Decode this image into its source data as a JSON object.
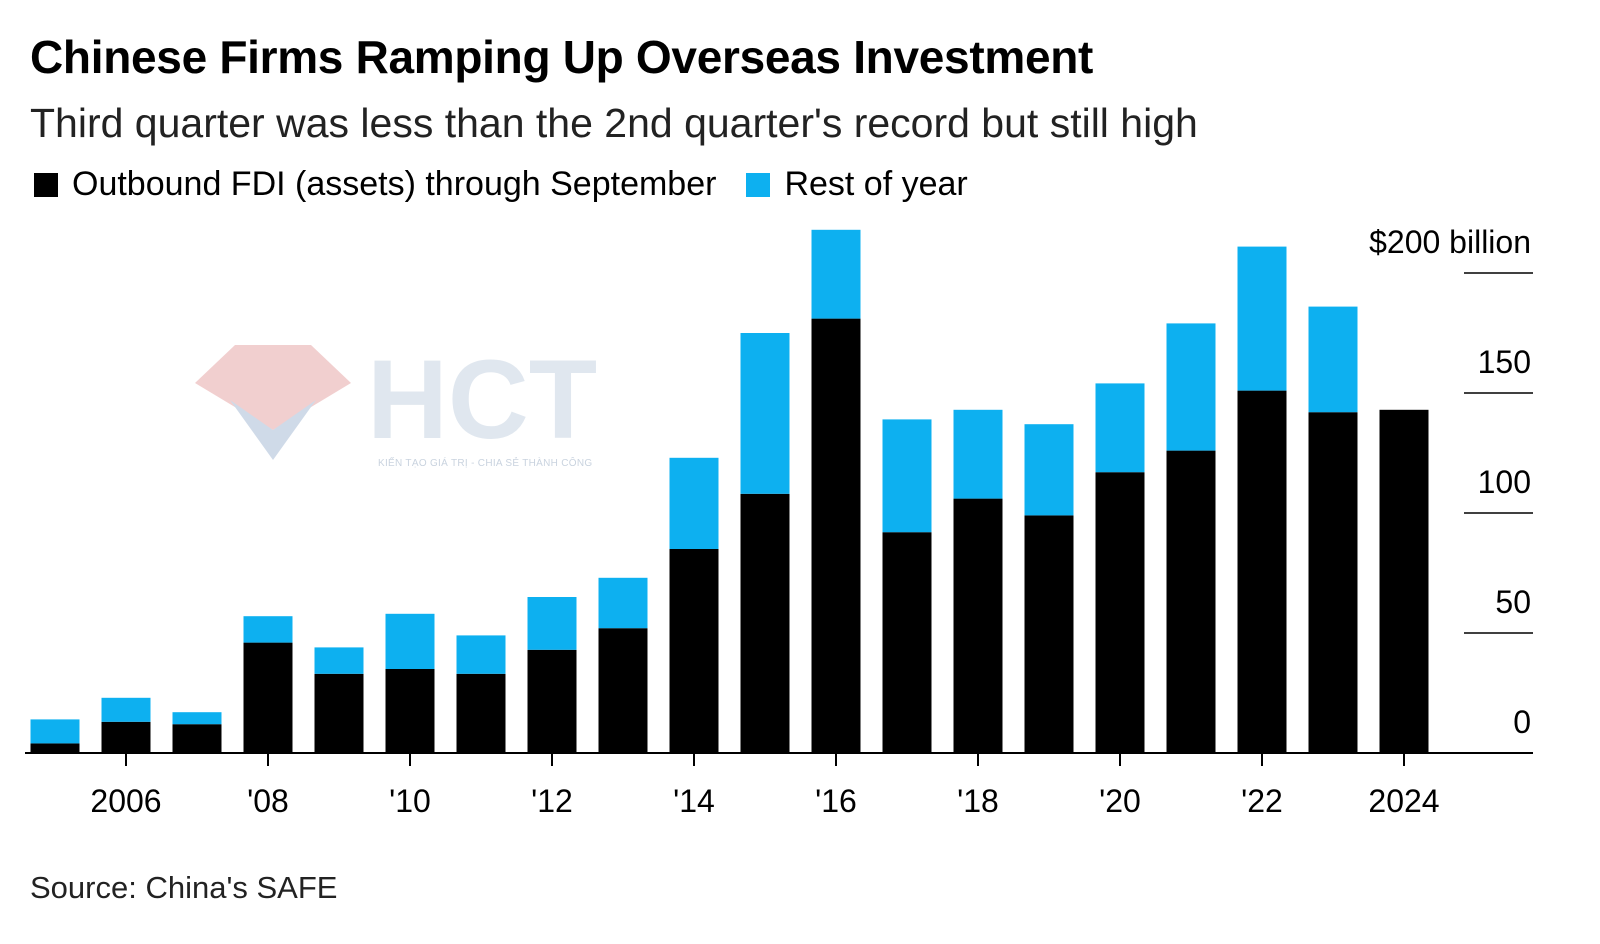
{
  "chart_data": {
    "type": "bar",
    "stacked": true,
    "title": "Chinese Firms Ramping Up Overseas Investment",
    "subtitle": "Third quarter was less than the 2nd quarter's record but still high",
    "source": "Source: China's SAFE",
    "xlabel": "",
    "ylabel": "",
    "ylim": [
      0,
      200
    ],
    "y_ticks": [
      {
        "value": 0,
        "label": "0"
      },
      {
        "value": 50,
        "label": "50"
      },
      {
        "value": 100,
        "label": "100"
      },
      {
        "value": 150,
        "label": "150"
      },
      {
        "value": 200,
        "label": "$200 billion"
      }
    ],
    "x_ticks": [
      {
        "year": 2006,
        "label": "2006"
      },
      {
        "year": 2008,
        "label": "'08"
      },
      {
        "year": 2010,
        "label": "'10"
      },
      {
        "year": 2012,
        "label": "'12"
      },
      {
        "year": 2014,
        "label": "'14"
      },
      {
        "year": 2016,
        "label": "'16"
      },
      {
        "year": 2018,
        "label": "'18"
      },
      {
        "year": 2020,
        "label": "'20"
      },
      {
        "year": 2022,
        "label": "'22"
      },
      {
        "year": 2024,
        "label": "2024"
      }
    ],
    "legend_position": "top-left",
    "categories": [
      2005,
      2006,
      2007,
      2008,
      2009,
      2010,
      2011,
      2012,
      2013,
      2014,
      2015,
      2016,
      2017,
      2018,
      2019,
      2020,
      2021,
      2022,
      2023,
      2024
    ],
    "series": [
      {
        "name": "Outbound FDI (assets) through September",
        "color": "#000000",
        "values": [
          4,
          13,
          12,
          46,
          33,
          35,
          33,
          43,
          52,
          85,
          108,
          181,
          92,
          106,
          99,
          117,
          126,
          151,
          142,
          143
        ]
      },
      {
        "name": "Rest of year",
        "color": "#0db0f0",
        "values": [
          10,
          10,
          5,
          11,
          11,
          23,
          16,
          22,
          21,
          38,
          67,
          37,
          47,
          37,
          38,
          37,
          53,
          60,
          44,
          0
        ]
      }
    ]
  },
  "watermark": {
    "text": "HCT",
    "tagline": "KIẾN TẠO GIÁ TRỊ - CHIA SẺ THÀNH CÔNG",
    "colors": {
      "red": "#e7a8a8",
      "blue": "#a9bcd6",
      "letters": "#c8d4e2"
    }
  }
}
